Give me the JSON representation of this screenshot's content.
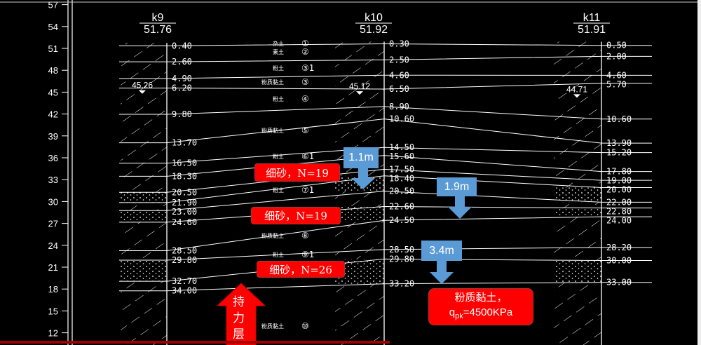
{
  "axis": {
    "ticks": [
      57,
      54,
      51,
      48,
      45,
      42,
      39,
      36,
      33,
      30,
      27,
      24,
      21,
      18,
      15,
      12
    ]
  },
  "boreholes": [
    {
      "id": "k9",
      "elevation": "51.76",
      "water_level": "45.26",
      "depths": [
        "0.40",
        "2.60",
        "4.90",
        "6.20",
        "9.80",
        "13.70",
        "16.50",
        "18.30",
        "20.50",
        "21.90",
        "23.00",
        "24.60",
        "28.50",
        "29.80",
        "32.70",
        "34.00"
      ],
      "sand": [
        [
          20.5,
          21.9
        ],
        [
          23.0,
          24.6
        ],
        [
          29.8,
          32.7
        ]
      ]
    },
    {
      "id": "k10",
      "elevation": "51.92",
      "water_level": "45.12",
      "depths": [
        "0.30",
        "2.50",
        "4.60",
        "6.50",
        "8.90",
        "10.60",
        "14.50",
        "15.60",
        "17.50",
        "18.40",
        "20.50",
        "22.60",
        "24.50",
        "28.50",
        "29.80",
        "33.20"
      ],
      "sand": [
        [
          18.4,
          20.5
        ],
        [
          22.6,
          24.5
        ],
        [
          29.8,
          33.2
        ]
      ]
    },
    {
      "id": "k11",
      "elevation": "51.91",
      "water_level": "44.71",
      "depths": [
        "0.50",
        "2.00",
        "4.60",
        "5.70",
        "10.60",
        "13.90",
        "15.20",
        "17.80",
        "19.00",
        "20.00",
        "22.00",
        "22.80",
        "24.00",
        "28.20",
        "30.00",
        "33.00"
      ],
      "sand": [
        [
          20.0,
          22.0
        ],
        [
          22.8,
          24.0
        ],
        [
          30.0,
          33.0
        ]
      ]
    }
  ],
  "layer_labels": [
    {
      "num": "①",
      "name": "杂土"
    },
    {
      "num": "②",
      "name": "素土"
    },
    {
      "num": "③1",
      "name": "粉土"
    },
    {
      "num": "③",
      "name": "粉质黏土"
    },
    {
      "num": "④",
      "name": "粉土"
    },
    {
      "num": "⑤",
      "name": "粉质黏土"
    },
    {
      "num": "⑥1",
      "name": "粉土"
    },
    {
      "num": "⑦1",
      "name": "粉土"
    },
    {
      "num": "⑧",
      "name": "粉质黏土"
    },
    {
      "num": "⑨1",
      "name": "粉土"
    },
    {
      "num": "⑩",
      "name": "粉质黏土"
    }
  ],
  "annotations": {
    "sand1": "细砂，N=19",
    "sand2": "细砂，N=19",
    "sand3": "细砂，N=26",
    "clay_line1": "粉质黏土，",
    "clay_q": "q",
    "clay_sub": "pk",
    "clay_value": "=4500KPa",
    "bearing_layer": "持力层",
    "dist1": "1.1m",
    "dist2": "1.9m",
    "dist3": "3.4m"
  },
  "colors": {
    "annotation_red": "#ff0000",
    "arrow_blue": "#5b9bd5",
    "drawing": "#ffffff",
    "background": "#000000"
  }
}
